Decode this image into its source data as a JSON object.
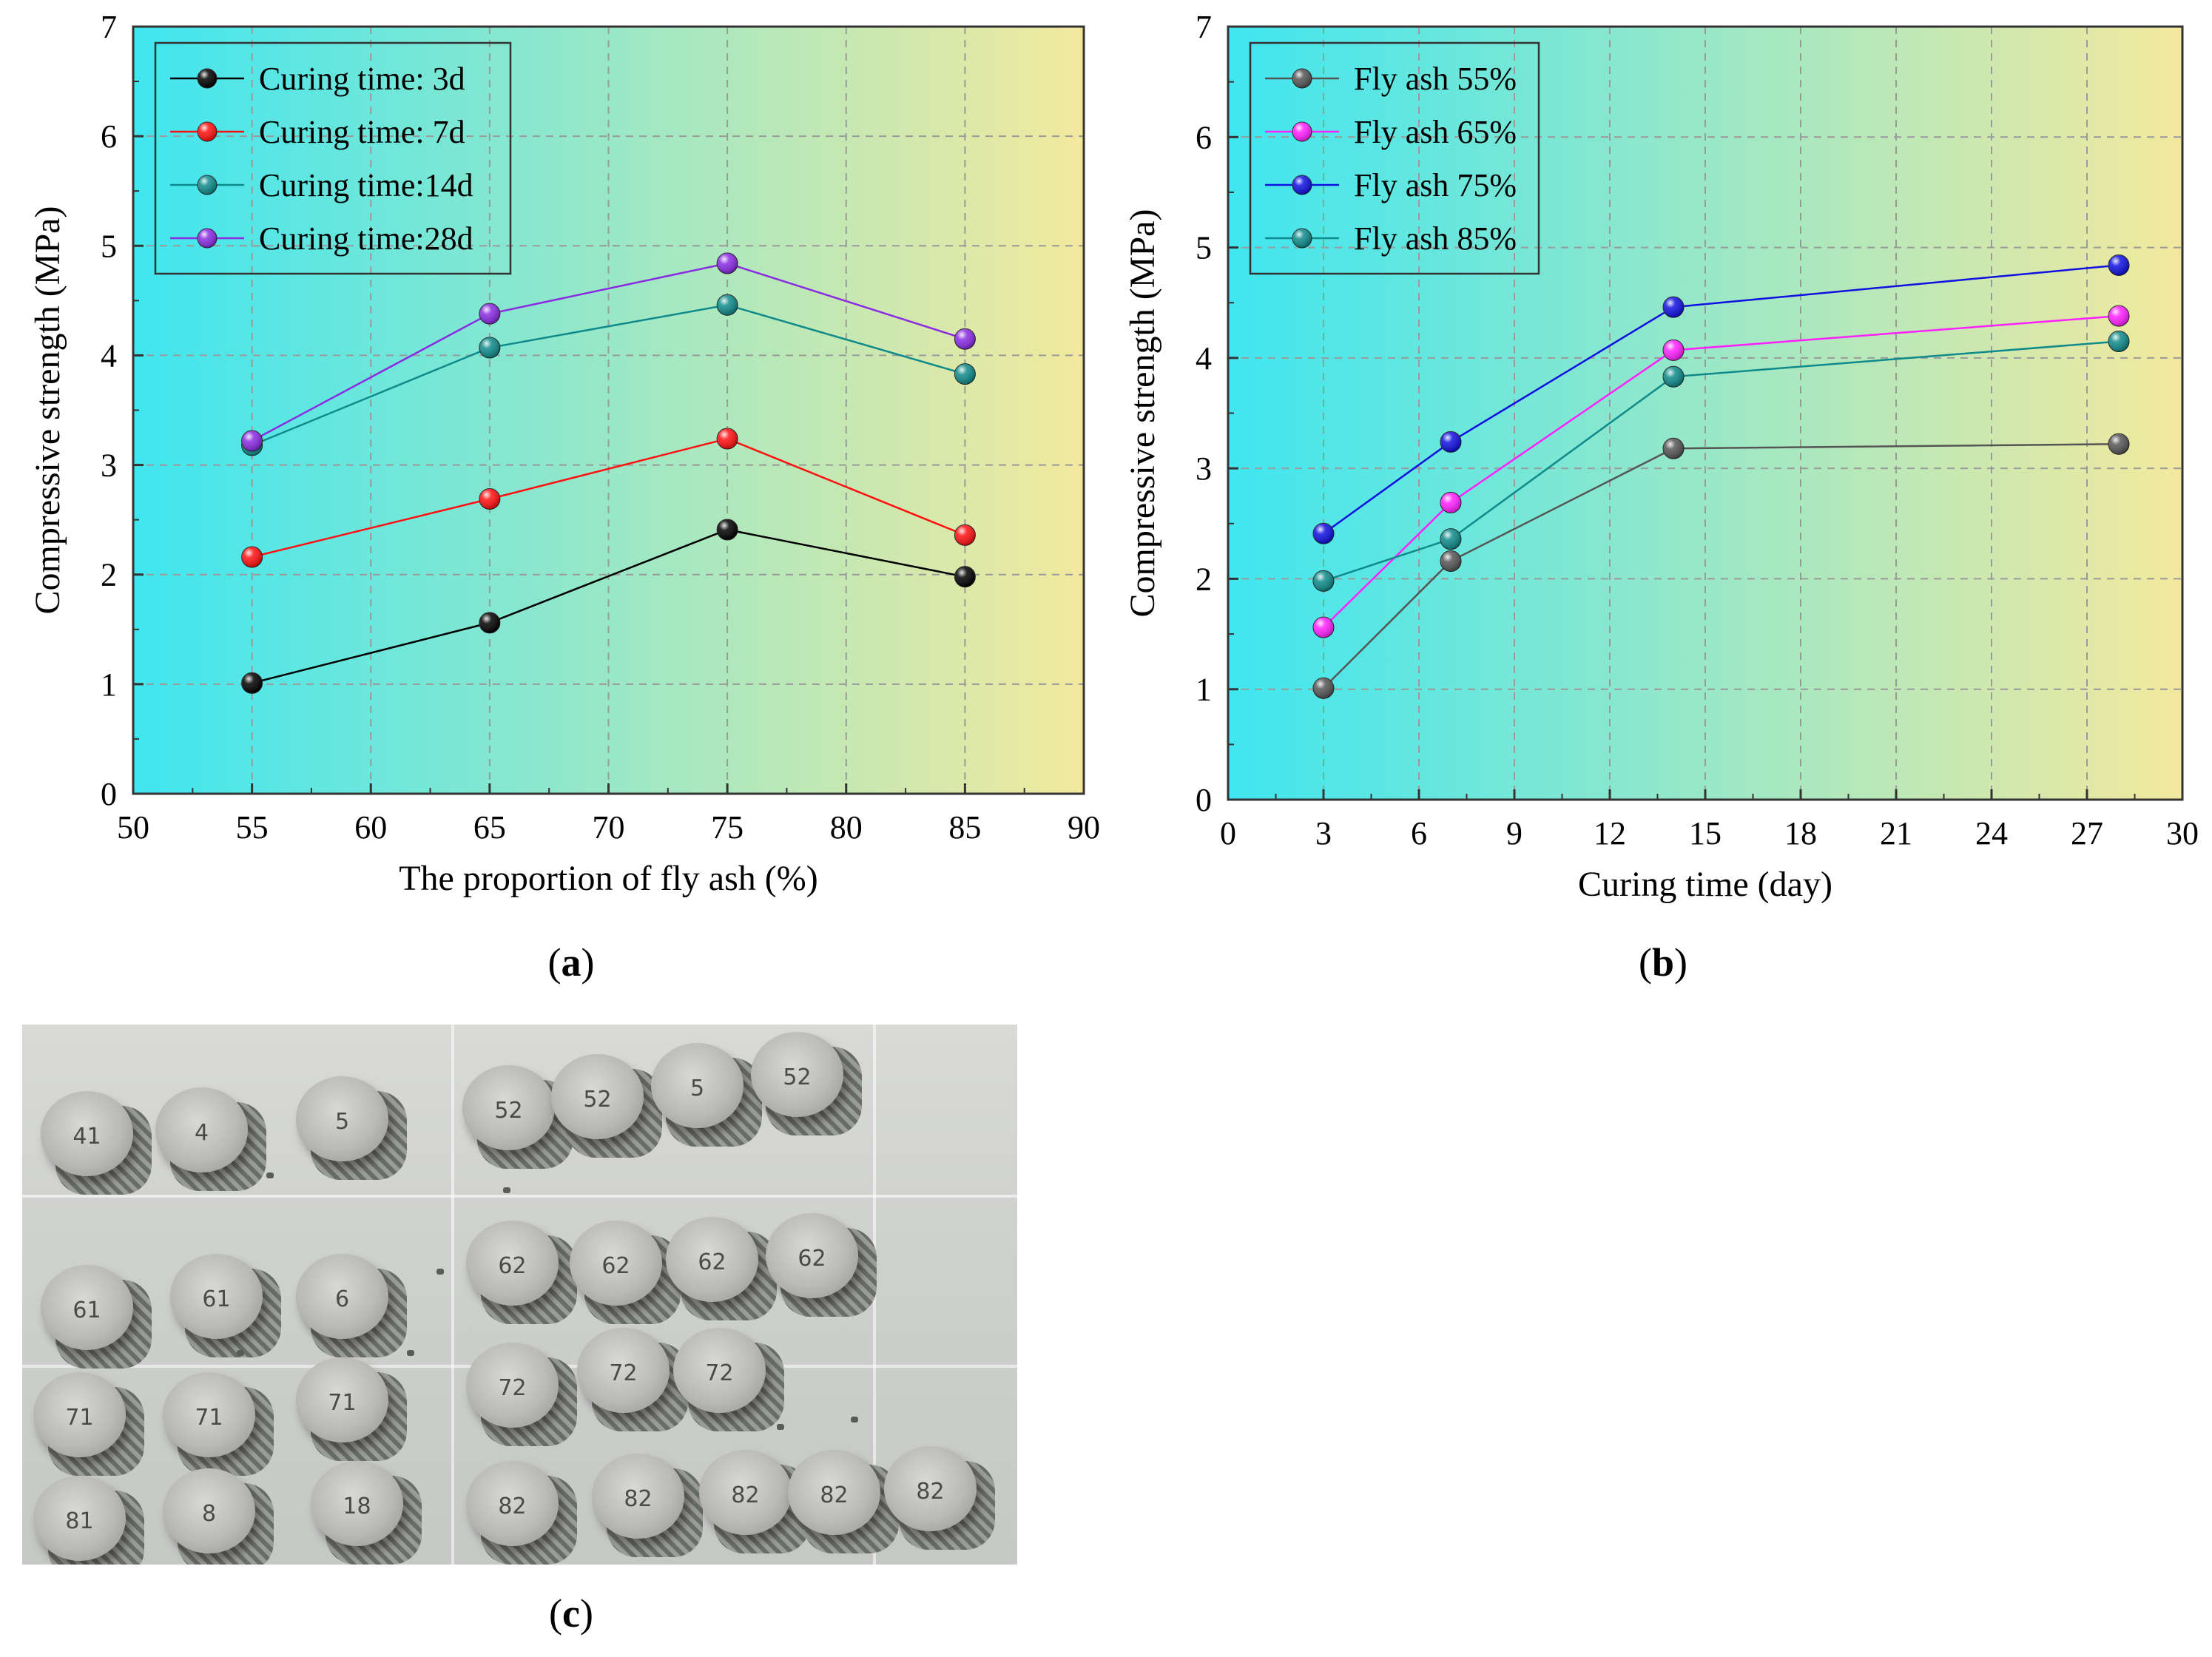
{
  "captions": {
    "a": "a",
    "b": "b",
    "c": "c"
  },
  "chart_data": [
    {
      "id": "a",
      "type": "line",
      "title": "",
      "xlabel": "The proportion of fly ash (%)",
      "ylabel": "Compressive strength (MPa)",
      "xlim": [
        50,
        90
      ],
      "ylim": [
        0,
        7
      ],
      "xticks": [
        50,
        55,
        60,
        65,
        70,
        75,
        80,
        85,
        90
      ],
      "yticks": [
        0,
        1,
        2,
        3,
        4,
        5,
        6,
        7
      ],
      "grid": true,
      "legend": "top-left",
      "background": {
        "from": "#3fe6f0",
        "to": "#f3e99e"
      },
      "x": [
        55,
        65,
        75,
        85
      ],
      "series": [
        {
          "name": "Curing time: 3d",
          "color": "#000000",
          "values": [
            1.01,
            1.56,
            2.41,
            1.98
          ]
        },
        {
          "name": "Curing time: 7d",
          "color": "#ff1010",
          "values": [
            2.16,
            2.69,
            3.24,
            2.36
          ]
        },
        {
          "name": "Curing time:14d",
          "color": "#0f8a8a",
          "values": [
            3.18,
            4.07,
            4.46,
            3.83
          ]
        },
        {
          "name": "Curing time:28d",
          "color": "#8a2be2",
          "values": [
            3.22,
            4.38,
            4.84,
            4.15
          ]
        }
      ]
    },
    {
      "id": "b",
      "type": "line",
      "title": "",
      "xlabel": "Curing time (day)",
      "ylabel": "Compressive strength (MPa)",
      "xlim": [
        0,
        30
      ],
      "ylim": [
        0,
        7
      ],
      "xticks": [
        0,
        3,
        6,
        9,
        12,
        15,
        18,
        21,
        24,
        27,
        30
      ],
      "yticks": [
        0,
        1,
        2,
        3,
        4,
        5,
        6,
        7
      ],
      "grid": true,
      "legend": "top-left",
      "background": {
        "from": "#3fe6f0",
        "to": "#f3e99e"
      },
      "x": [
        3,
        7,
        14,
        28
      ],
      "series": [
        {
          "name": "Fly ash 55%",
          "color": "#555555",
          "values": [
            1.01,
            2.16,
            3.18,
            3.22
          ]
        },
        {
          "name": "Fly ash 65%",
          "color": "#ff20ff",
          "values": [
            1.56,
            2.69,
            4.07,
            4.38
          ]
        },
        {
          "name": "Fly ash 75%",
          "color": "#1010e0",
          "values": [
            2.41,
            3.24,
            4.46,
            4.84
          ]
        },
        {
          "name": "Fly ash 85%",
          "color": "#0f8a8a",
          "values": [
            1.98,
            2.36,
            3.83,
            4.15
          ]
        }
      ]
    }
  ],
  "photo": {
    "specimens": [
      "41",
      "4",
      "5",
      "52",
      "52",
      "5",
      "52",
      "61",
      "61",
      "6",
      "62",
      "62",
      "62",
      "62",
      "71",
      "71",
      "71",
      "72",
      "72",
      "72",
      "81",
      "8",
      "18",
      "82",
      "82",
      "82",
      "82",
      "82"
    ]
  }
}
